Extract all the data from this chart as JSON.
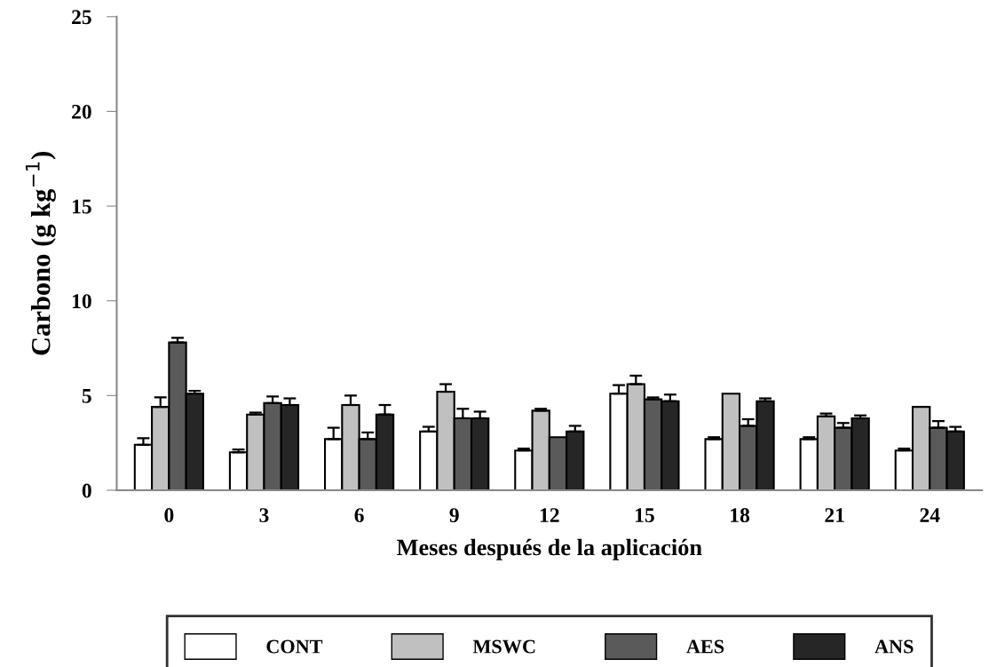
{
  "chart_data": {
    "type": "bar",
    "xlabel": "Meses después de la aplicación",
    "ylabel": "Carbono (g kg$^{−1}$)",
    "categories": [
      "0",
      "3",
      "6",
      "9",
      "12",
      "15",
      "18",
      "21",
      "24"
    ],
    "series": [
      {
        "name": "CONT",
        "color": "#ffffff",
        "values": [
          2.4,
          2.0,
          2.7,
          3.1,
          2.1,
          5.1,
          2.7,
          2.7,
          2.1
        ],
        "errors": [
          0.35,
          0.15,
          0.6,
          0.25,
          0.1,
          0.45,
          0.1,
          0.1,
          0.1
        ]
      },
      {
        "name": "MSWC",
        "color": "#c0c0c0",
        "values": [
          4.4,
          4.0,
          4.5,
          5.2,
          4.2,
          5.6,
          5.1,
          3.9,
          4.4
        ],
        "errors": [
          0.5,
          0.1,
          0.5,
          0.4,
          0.1,
          0.45,
          null,
          0.15,
          null
        ]
      },
      {
        "name": "AES",
        "color": "#5a5a5a",
        "values": [
          7.8,
          4.6,
          2.7,
          3.8,
          2.8,
          4.8,
          3.4,
          3.3,
          3.3
        ],
        "errors": [
          0.25,
          0.35,
          0.35,
          0.5,
          null,
          0.1,
          0.35,
          0.25,
          0.35
        ]
      },
      {
        "name": "ANS",
        "color": "#262626",
        "values": [
          5.1,
          4.5,
          4.0,
          3.8,
          3.1,
          4.7,
          4.7,
          3.8,
          3.1
        ],
        "errors": [
          0.15,
          0.35,
          0.5,
          0.35,
          0.3,
          0.35,
          0.15,
          0.15,
          0.25
        ]
      }
    ],
    "ylim": [
      0,
      25
    ],
    "yticks": [
      0,
      5,
      10,
      15,
      20,
      25
    ],
    "grid": false,
    "legend": "bottom"
  }
}
